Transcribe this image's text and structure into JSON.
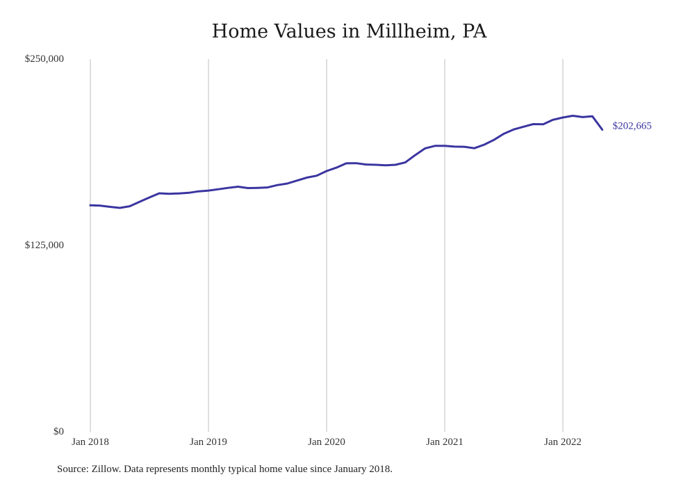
{
  "colors": {
    "line": "#3a35a0",
    "grid": "#bdbdbd"
  },
  "source": "Source: Zillow. Data represents monthly typical home value since January 2018.",
  "chart_data": {
    "type": "line",
    "title": "Home Values in Millheim, PA",
    "xlabel": "",
    "ylabel": "",
    "ylim": [
      0,
      250000
    ],
    "xlim": [
      "2018-01",
      "2022-05"
    ],
    "y_ticks": [
      0,
      125000,
      250000
    ],
    "y_tick_labels": [
      "$0",
      "$125,000",
      "$250,000"
    ],
    "x_ticks": [
      "2018-01",
      "2019-01",
      "2020-01",
      "2021-01",
      "2022-01"
    ],
    "x_tick_labels": [
      "Jan 2018",
      "Jan 2019",
      "Jan 2020",
      "Jan 2021",
      "Jan 2022"
    ],
    "grid": {
      "vertical": true,
      "horizontal": false
    },
    "end_label": "$202,665",
    "series": [
      {
        "x": [
          "2018-01",
          "2018-02",
          "2018-03",
          "2018-04",
          "2018-05",
          "2018-06",
          "2018-07",
          "2018-08",
          "2018-09",
          "2018-10",
          "2018-11",
          "2018-12",
          "2019-01",
          "2019-02",
          "2019-03",
          "2019-04",
          "2019-05",
          "2019-06",
          "2019-07",
          "2019-08",
          "2019-09",
          "2019-10",
          "2019-11",
          "2019-12",
          "2020-01",
          "2020-02",
          "2020-03",
          "2020-04",
          "2020-05",
          "2020-06",
          "2020-07",
          "2020-08",
          "2020-09",
          "2020-10",
          "2020-11",
          "2020-12",
          "2021-01",
          "2021-02",
          "2021-03",
          "2021-04",
          "2021-05",
          "2021-06",
          "2021-07",
          "2021-08",
          "2021-09",
          "2021-10",
          "2021-11",
          "2021-12",
          "2022-01",
          "2022-02",
          "2022-03",
          "2022-04",
          "2022-05"
        ],
        "values": [
          151900,
          151700,
          150900,
          150200,
          151300,
          154300,
          157200,
          160000,
          159600,
          159900,
          160300,
          161300,
          161800,
          162700,
          163600,
          164400,
          163500,
          163600,
          163900,
          165500,
          166500,
          168500,
          170500,
          171800,
          174900,
          177200,
          180100,
          180200,
          179300,
          179100,
          178800,
          179100,
          180700,
          185600,
          190100,
          191800,
          191800,
          191300,
          191200,
          190200,
          192600,
          195800,
          199900,
          202800,
          204600,
          206400,
          206300,
          209300,
          210800,
          212000,
          211100,
          211600,
          202665
        ]
      }
    ]
  }
}
